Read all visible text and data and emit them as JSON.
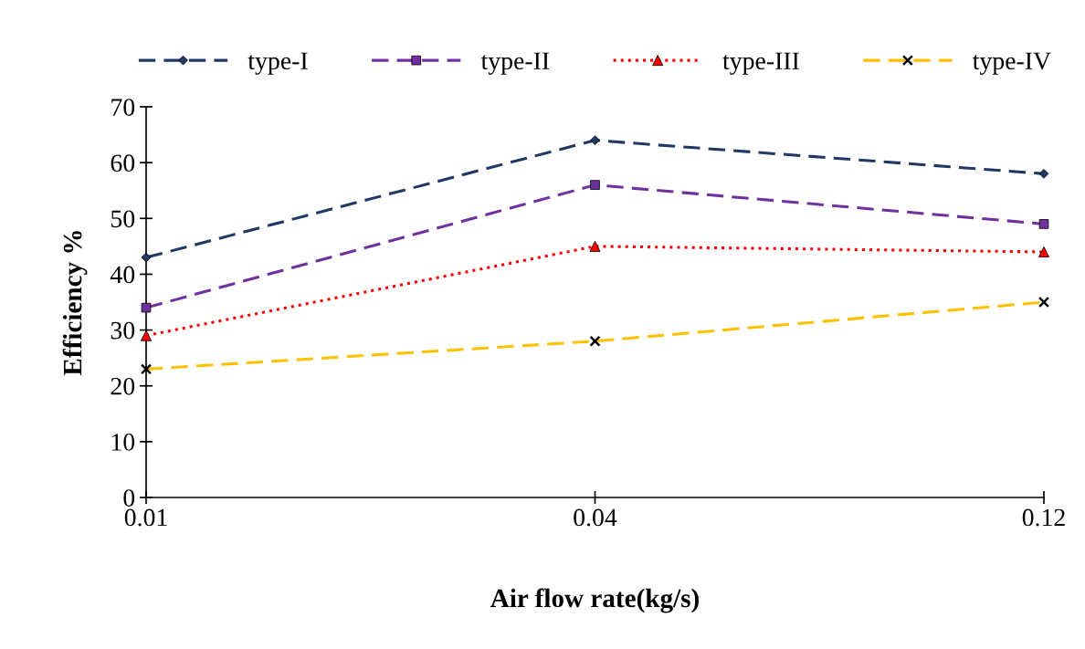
{
  "chart_data": {
    "type": "line",
    "xlabel": "Air flow rate(kg/s)",
    "ylabel": "Efficiency %",
    "categories": [
      "0.01",
      "0.04",
      "0.12"
    ],
    "series": [
      {
        "name": "type-I",
        "color": "#1f3864",
        "values": [
          43,
          64,
          58
        ],
        "marker": "diamond",
        "line_style": "dashed"
      },
      {
        "name": "type-II",
        "color": "#7030a0",
        "values": [
          34,
          56,
          49
        ],
        "marker": "square",
        "line_style": "dashed"
      },
      {
        "name": "type-III",
        "color": "#ff0000",
        "values": [
          29,
          45,
          44
        ],
        "marker": "triangle",
        "line_style": "dotted"
      },
      {
        "name": "type-IV",
        "color": "#ffc000",
        "values": [
          23,
          28,
          35
        ],
        "marker": "cross",
        "line_style": "dashed"
      }
    ],
    "ylim": [
      0,
      70
    ],
    "yticks": [
      0,
      10,
      20,
      30,
      40,
      50,
      60,
      70
    ],
    "grid": false,
    "legend": "top"
  }
}
